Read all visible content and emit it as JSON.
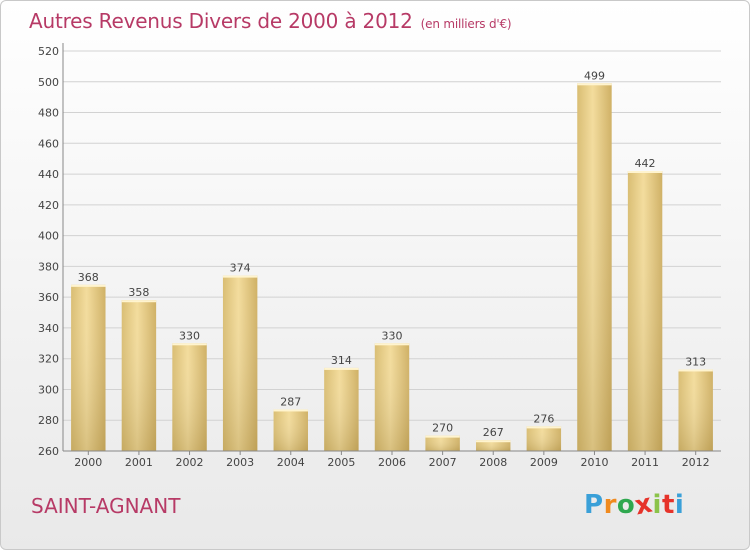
{
  "title": "Autres Revenus Divers de 2000 à 2012",
  "subtitle": "(en milliers d'€)",
  "commune": "SAINT-AGNANT",
  "logo": {
    "letters": [
      "P",
      "r",
      "o",
      "x",
      "i",
      "t",
      "i"
    ],
    "colors": [
      "#3aa0d8",
      "#f08a1e",
      "#2fa84f",
      "#e6332a",
      "#8bc34a",
      "#e6332a",
      "#3aa0d8"
    ]
  },
  "chart_data": {
    "type": "bar",
    "title": "Autres Revenus Divers de 2000 à 2012",
    "categories": [
      "2000",
      "2001",
      "2002",
      "2003",
      "2004",
      "2005",
      "2006",
      "2007",
      "2008",
      "2009",
      "2010",
      "2011",
      "2012"
    ],
    "values": [
      368,
      358,
      330,
      374,
      287,
      314,
      330,
      270,
      267,
      276,
      499,
      442,
      313
    ],
    "ylim": [
      260,
      520
    ],
    "yticks": [
      260,
      280,
      300,
      320,
      340,
      360,
      380,
      400,
      420,
      440,
      460,
      480,
      500,
      520
    ],
    "grid": true,
    "bar_color": "#e7cf88"
  }
}
